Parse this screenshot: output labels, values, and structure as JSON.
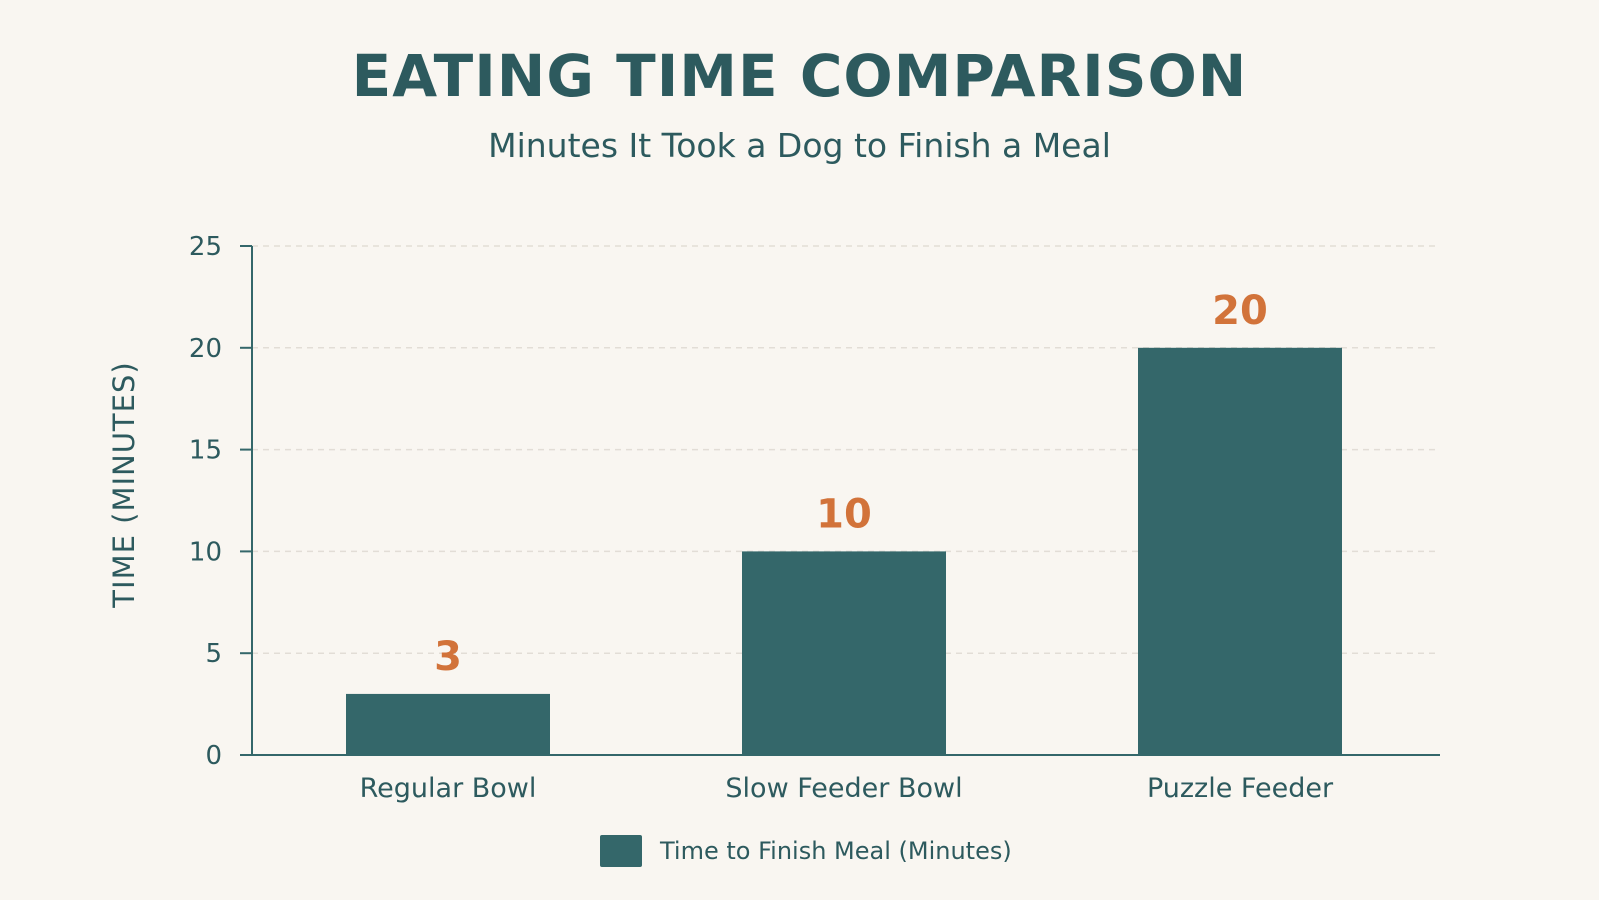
{
  "colors": {
    "background": "#f9f6f1",
    "bar": "#34676a",
    "text": "#2d5a5e",
    "value_label": "#d2733a",
    "grid": "#e2ddd6",
    "axis": "#34676a"
  },
  "chart_data": {
    "type": "bar",
    "title": "EATING TIME COMPARISON",
    "subtitle": "Minutes It Took a Dog to Finish a Meal",
    "ylabel": "TIME (MINUTES)",
    "xlabel": "",
    "categories": [
      "Regular Bowl",
      "Slow Feeder Bowl",
      "Puzzle Feeder"
    ],
    "series": [
      {
        "name": "Time to Finish Meal (Minutes)",
        "values": [
          3,
          10,
          20
        ]
      }
    ],
    "ylim": [
      0,
      25
    ],
    "yticks": [
      0,
      5,
      10,
      15,
      20,
      25
    ],
    "grid": true,
    "legend_position": "bottom-center",
    "data_labels": true
  }
}
